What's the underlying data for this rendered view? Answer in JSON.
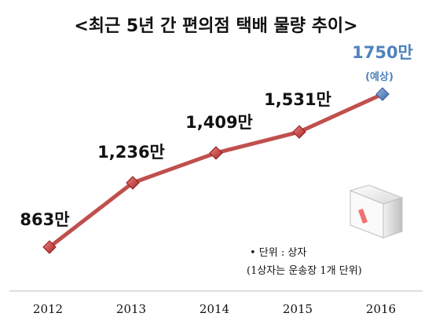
{
  "chart_data": {
    "type": "line",
    "title": "<최근 5년 간 편의점 택배 물량 추이>",
    "categories": [
      "2012",
      "2013",
      "2014",
      "2015",
      "2016"
    ],
    "values": [
      863,
      1236,
      1409,
      1531,
      1750
    ],
    "data_labels": [
      "863만",
      "1,236만",
      "1,409만",
      "1,531만",
      "1750만"
    ],
    "forecast_note": "(예상)",
    "forecast_index": 4,
    "ylim": [
      700,
      1800
    ],
    "grid": false,
    "line_color": "#c0504d",
    "forecast_marker_color": "#4f81bd",
    "unit_note_line1": "• 단위 : 상자",
    "unit_note_line2": "(1상자는 운송장 1개 단위)"
  }
}
